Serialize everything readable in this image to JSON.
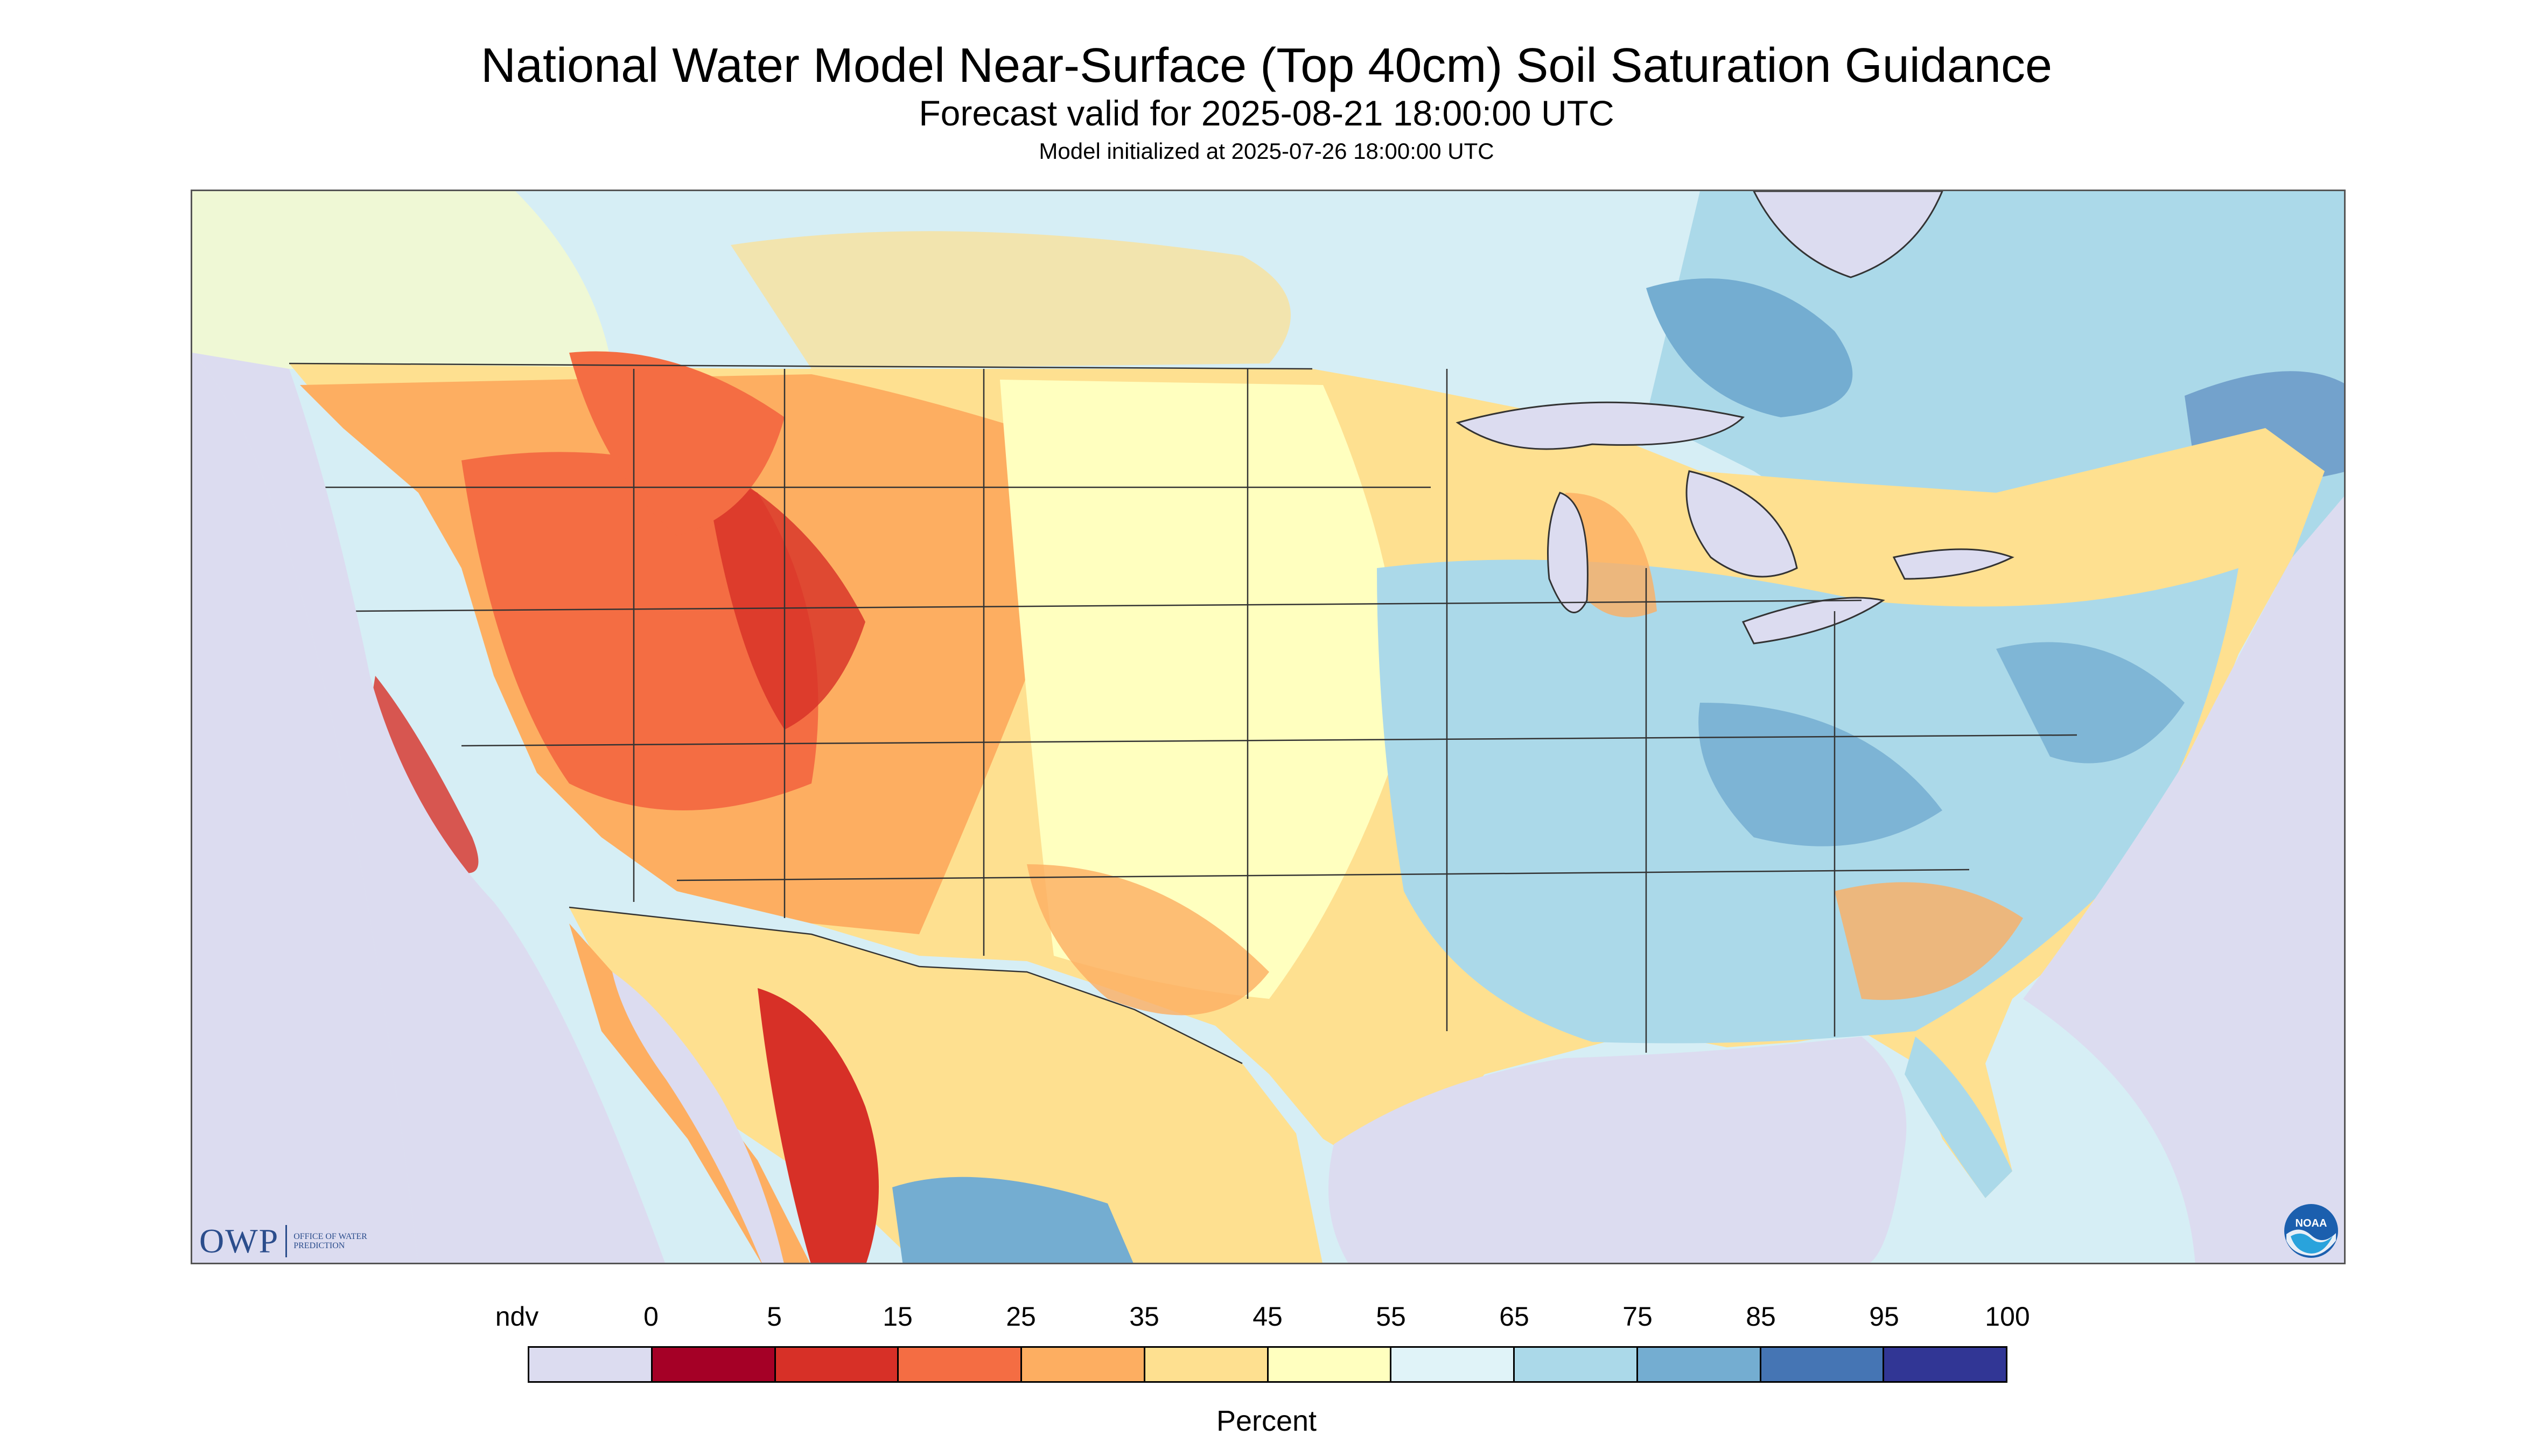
{
  "title": "National Water Model Near-Surface (Top 40cm) Soil Saturation Guidance",
  "subtitle": "Forecast valid for 2025-08-21 18:00:00 UTC",
  "init_line": "Model initialized at 2025-07-26 18:00:00 UTC",
  "logo": {
    "owp_abbrev": "OWP",
    "owp_full": "OFFICE OF WATER PREDICTION",
    "noaa": "NOAA"
  },
  "legend": {
    "unit": "Percent",
    "labels": [
      "ndv",
      "0",
      "5",
      "15",
      "25",
      "35",
      "45",
      "55",
      "65",
      "75",
      "85",
      "95",
      "100"
    ],
    "colors": [
      "#dcdcf0",
      "#a50026",
      "#d73027",
      "#f46d43",
      "#fdae61",
      "#fee090",
      "#ffffbf",
      "#e0f3f8",
      "#abd9e9",
      "#74add1",
      "#4575b4",
      "#313695"
    ]
  },
  "map_colors": {
    "nodata": "#dcdcf0",
    "lake": "#dcdcf0",
    "canada_base": "#d6eef5",
    "conus_base": "#fde49a",
    "boundary": "#333333"
  }
}
